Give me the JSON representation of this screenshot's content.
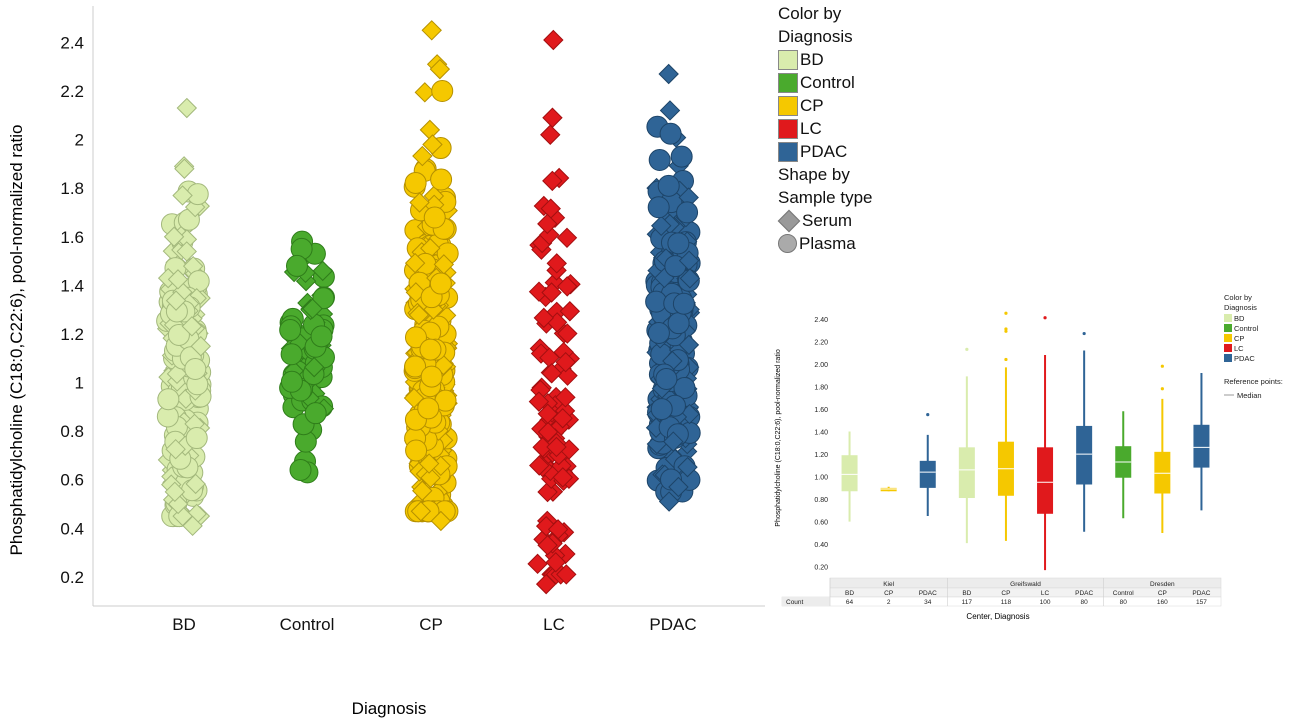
{
  "chart_data": [
    {
      "type": "scatter",
      "subtype": "strip-plot",
      "categories": [
        "BD",
        "Control",
        "CP",
        "LC",
        "PDAC"
      ],
      "xlabel": "Diagnosis",
      "ylabel": "Phosphatidylcholine (C18:0,C22:6), pool-normalized ratio",
      "yticks": [
        "0.2",
        "0.4",
        "0.6",
        "0.8",
        "1",
        "1.2",
        "1.4",
        "1.6",
        "1.8",
        "2",
        "2.2",
        "2.4"
      ],
      "ylim": [
        0.08,
        2.55
      ],
      "grid": false,
      "legend_position": "right",
      "legend": {
        "color_title": "Color by\nDiagnosis",
        "color_title_lines": [
          "Color by",
          "Diagnosis"
        ],
        "colors": [
          {
            "label": "BD",
            "color": "#d9ecad"
          },
          {
            "label": "Control",
            "color": "#4aaa2d"
          },
          {
            "label": "CP",
            "color": "#f5c800"
          },
          {
            "label": "LC",
            "color": "#e0191c"
          },
          {
            "label": "PDAC",
            "color": "#2f6496"
          }
        ],
        "shape_title_lines": [
          "Shape by",
          "Sample type"
        ],
        "shapes": [
          {
            "label": "Serum",
            "shape": "diamond-icon"
          },
          {
            "label": "Plasma",
            "shape": "circle-icon"
          }
        ]
      },
      "series": [
        {
          "name": "BD",
          "color": "#d9ecad",
          "stroke": "#a3b87c",
          "n": 181,
          "min": 0.41,
          "max": 2.13,
          "center": 1.03,
          "outliers": [
            [
              0.41,
              "Serum"
            ],
            [
              0.5,
              "Serum"
            ],
            [
              0.55,
              "Serum"
            ],
            [
              1.77,
              "Serum"
            ],
            [
              1.89,
              "Serum"
            ],
            [
              1.88,
              "Serum"
            ],
            [
              2.13,
              "Serum"
            ],
            [
              1.6,
              "Serum"
            ]
          ]
        },
        {
          "name": "Control",
          "color": "#4aaa2d",
          "stroke": "#2f7d1a",
          "n": 80,
          "min": 0.63,
          "max": 1.58,
          "center": 1.13,
          "outliers": [
            [
              0.63,
              "Plasma"
            ],
            [
              0.64,
              "Plasma"
            ],
            [
              1.58,
              "Plasma"
            ],
            [
              1.55,
              "Plasma"
            ],
            [
              1.48,
              "Plasma"
            ]
          ]
        },
        {
          "name": "CP",
          "color": "#f5c800",
          "stroke": "#b59000",
          "n": 280,
          "min": 0.43,
          "max": 2.45,
          "center": 1.06,
          "outliers": [
            [
              2.45,
              "Serum"
            ],
            [
              2.31,
              "Serum"
            ],
            [
              2.29,
              "Serum"
            ],
            [
              2.04,
              "Serum"
            ],
            [
              1.98,
              "Serum"
            ],
            [
              0.43,
              "Serum"
            ],
            [
              0.47,
              "Serum"
            ]
          ]
        },
        {
          "name": "LC",
          "color": "#e0191c",
          "stroke": "#a30f10",
          "n": 100,
          "min": 0.17,
          "max": 2.41,
          "center": 0.95,
          "outliers": [
            [
              2.41,
              "Serum"
            ],
            [
              2.09,
              "Serum"
            ],
            [
              2.02,
              "Serum"
            ],
            [
              1.83,
              "Serum"
            ],
            [
              0.17,
              "Serum"
            ],
            [
              0.26,
              "Serum"
            ],
            [
              0.33,
              "Serum"
            ]
          ]
        },
        {
          "name": "PDAC",
          "color": "#2f6496",
          "stroke": "#1d4468",
          "n": 271,
          "min": 0.51,
          "max": 2.27,
          "center": 1.22,
          "outliers": [
            [
              2.27,
              "Serum"
            ],
            [
              2.12,
              "Serum"
            ],
            [
              1.93,
              "Plasma"
            ],
            [
              0.51,
              "Serum"
            ],
            [
              0.57,
              "Serum"
            ]
          ]
        }
      ]
    },
    {
      "type": "box",
      "xlabel": "Center, Diagnosis",
      "ylabel": "Phosphatidylcholine (C18:0,C22:6), pool-normalized ratio",
      "yticks": [
        "0.20",
        "0.40",
        "0.60",
        "0.80",
        "1.00",
        "1.20",
        "1.40",
        "1.60",
        "1.80",
        "2.00",
        "2.20",
        "2.40"
      ],
      "ylim": [
        0.1,
        2.55
      ],
      "legend": {
        "title_lines": [
          "Color by",
          "Diagnosis"
        ],
        "items": [
          {
            "label": "BD",
            "color": "#d9ecad"
          },
          {
            "label": "Control",
            "color": "#4aaa2d"
          },
          {
            "label": "CP",
            "color": "#f5c800"
          },
          {
            "label": "LC",
            "color": "#e0191c"
          },
          {
            "label": "PDAC",
            "color": "#2f6496"
          }
        ],
        "reference_title": "Reference points:",
        "reference_item": "Median"
      },
      "count_label": "Count",
      "centers": [
        {
          "name": "Kiel",
          "groups": [
            {
              "diagnosis": "BD",
              "count": "64",
              "color": "#d9ecad",
              "whisker_low": 0.6,
              "q1": 0.87,
              "median": 1.02,
              "q3": 1.19,
              "whisker_high": 1.4,
              "outliers": []
            },
            {
              "diagnosis": "CP",
              "count": "2",
              "color": "#f5c800",
              "whisker_low": 0.87,
              "q1": 0.87,
              "median": 0.89,
              "q3": 0.9,
              "whisker_high": 0.91,
              "outliers": []
            },
            {
              "diagnosis": "PDAC",
              "count": "34",
              "color": "#2f6496",
              "whisker_low": 0.65,
              "q1": 0.9,
              "median": 1.04,
              "q3": 1.14,
              "whisker_high": 1.37,
              "outliers": [
                1.55
              ]
            }
          ]
        },
        {
          "name": "Greifswald",
          "groups": [
            {
              "diagnosis": "BD",
              "count": "117",
              "color": "#d9ecad",
              "whisker_low": 0.41,
              "q1": 0.81,
              "median": 1.06,
              "q3": 1.26,
              "whisker_high": 1.89,
              "outliers": [
                2.13
              ]
            },
            {
              "diagnosis": "CP",
              "count": "118",
              "color": "#f5c800",
              "whisker_low": 0.43,
              "q1": 0.83,
              "median": 1.07,
              "q3": 1.31,
              "whisker_high": 1.97,
              "outliers": [
                2.04,
                2.29,
                2.31,
                2.45
              ]
            },
            {
              "diagnosis": "LC",
              "count": "100",
              "color": "#e0191c",
              "whisker_low": 0.17,
              "q1": 0.67,
              "median": 0.95,
              "q3": 1.26,
              "whisker_high": 2.08,
              "outliers": [
                2.41
              ]
            },
            {
              "diagnosis": "PDAC",
              "count": "80",
              "color": "#2f6496",
              "whisker_low": 0.51,
              "q1": 0.93,
              "median": 1.2,
              "q3": 1.45,
              "whisker_high": 2.12,
              "outliers": [
                2.27
              ]
            }
          ]
        },
        {
          "name": "Dresden",
          "groups": [
            {
              "diagnosis": "Control",
              "count": "80",
              "color": "#4aaa2d",
              "whisker_low": 0.63,
              "q1": 0.99,
              "median": 1.13,
              "q3": 1.27,
              "whisker_high": 1.58,
              "outliers": []
            },
            {
              "diagnosis": "CP",
              "count": "160",
              "color": "#f5c800",
              "whisker_low": 0.5,
              "q1": 0.85,
              "median": 1.03,
              "q3": 1.22,
              "whisker_high": 1.69,
              "outliers": [
                1.78,
                1.98
              ]
            },
            {
              "diagnosis": "PDAC",
              "count": "157",
              "color": "#2f6496",
              "whisker_low": 0.7,
              "q1": 1.08,
              "median": 1.26,
              "q3": 1.46,
              "whisker_high": 1.92,
              "outliers": []
            }
          ]
        }
      ]
    }
  ]
}
